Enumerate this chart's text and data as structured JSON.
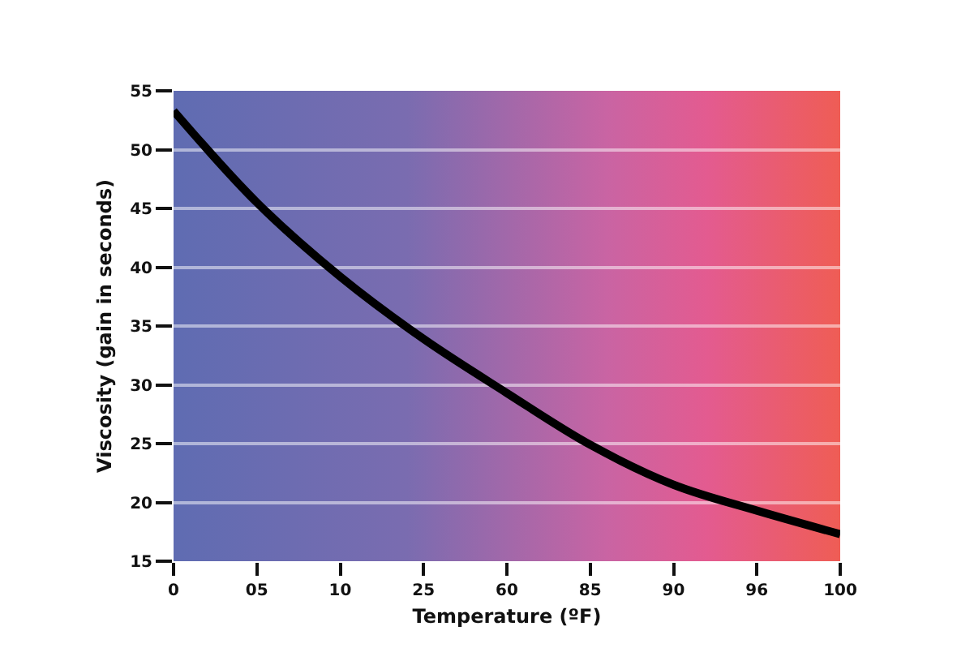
{
  "chart_data": {
    "type": "line",
    "xlabel": "Temperature (ºF)",
    "ylabel": "Viscosity (gain in seconds)",
    "categories": [
      "0",
      "05",
      "10",
      "25",
      "60",
      "85",
      "90",
      "96",
      "100"
    ],
    "series": [
      {
        "color": "#000000",
        "values": [
          53.3,
          45.5,
          39.2,
          33.9,
          29.3,
          24.9,
          21.5,
          19.3,
          17.3
        ]
      }
    ],
    "ylim": [
      15,
      55
    ],
    "yticks": [
      15,
      20,
      25,
      30,
      35,
      40,
      45,
      50,
      55
    ],
    "grid": "y",
    "marker": "none",
    "line_style": "solid"
  }
}
